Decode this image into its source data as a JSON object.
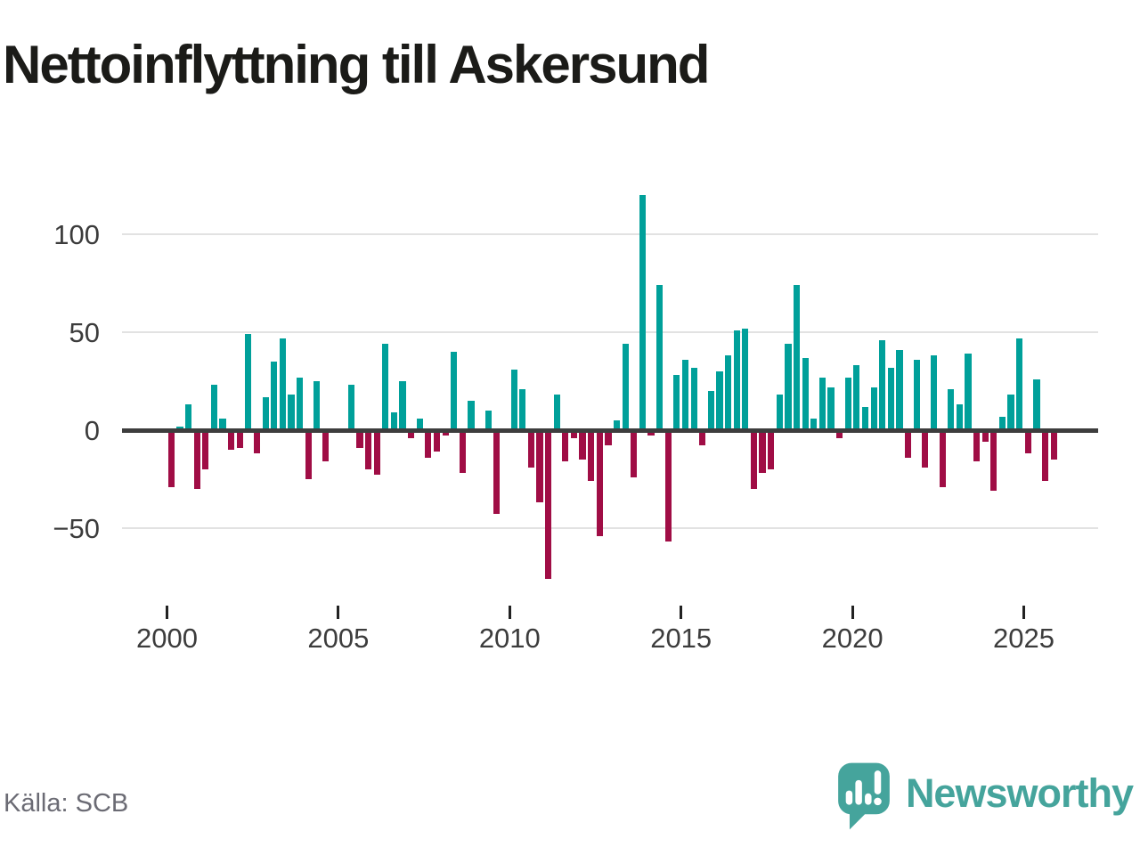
{
  "title": "Nettoinflyttning till Askersund",
  "source": "Källa: SCB",
  "brand": {
    "name": "Newsworthy"
  },
  "colors": {
    "positive": "#00a09a",
    "negative": "#a00d45",
    "title": "#1b1b18",
    "axis_text": "#3c3c3c",
    "gridline": "#e2e2e2",
    "zero_line": "#3d3d3d",
    "source_text": "#6b6b74",
    "brand_teal": "#45a49c"
  },
  "chart_data": {
    "type": "bar",
    "title": "Nettoinflyttning till Askersund",
    "frequency": "quarterly",
    "start_year": 2000,
    "start_quarter": 1,
    "end_year": 2025,
    "end_quarter": 4,
    "values": [
      -28,
      2,
      13,
      -29,
      -19,
      23,
      6,
      -9,
      -8,
      49,
      -11,
      17,
      35,
      47,
      18,
      27,
      -24,
      25,
      -15,
      0,
      0,
      23,
      -8,
      -19,
      -22,
      44,
      9,
      25,
      -3,
      6,
      -13,
      -10,
      -2,
      40,
      -21,
      15,
      0,
      10,
      -42,
      0,
      31,
      21,
      -18,
      -36,
      -75,
      18,
      -15,
      -3,
      -14,
      -25,
      -53,
      -7,
      5,
      44,
      -23,
      120,
      -2,
      74,
      -56,
      28,
      36,
      32,
      -7,
      20,
      30,
      38,
      51,
      52,
      -29,
      -21,
      -19,
      18,
      44,
      74,
      37,
      6,
      27,
      22,
      -3,
      27,
      33,
      12,
      22,
      46,
      32,
      41,
      -13,
      36,
      -18,
      38,
      -28,
      21,
      13,
      39,
      -15,
      -5,
      -30,
      7,
      18,
      47,
      -11,
      26,
      -25,
      -14
    ],
    "xticks": [
      "2000",
      "2005",
      "2010",
      "2015",
      "2020",
      "2025"
    ],
    "yticks": [
      {
        "label": "100",
        "value": 100
      },
      {
        "label": "50",
        "value": 50
      },
      {
        "label": "0",
        "value": 0
      },
      {
        "label": "−50",
        "value": -50
      }
    ],
    "ylim": [
      -85,
      135
    ],
    "grid": true,
    "legend": false,
    "xlabel": "",
    "ylabel": ""
  }
}
